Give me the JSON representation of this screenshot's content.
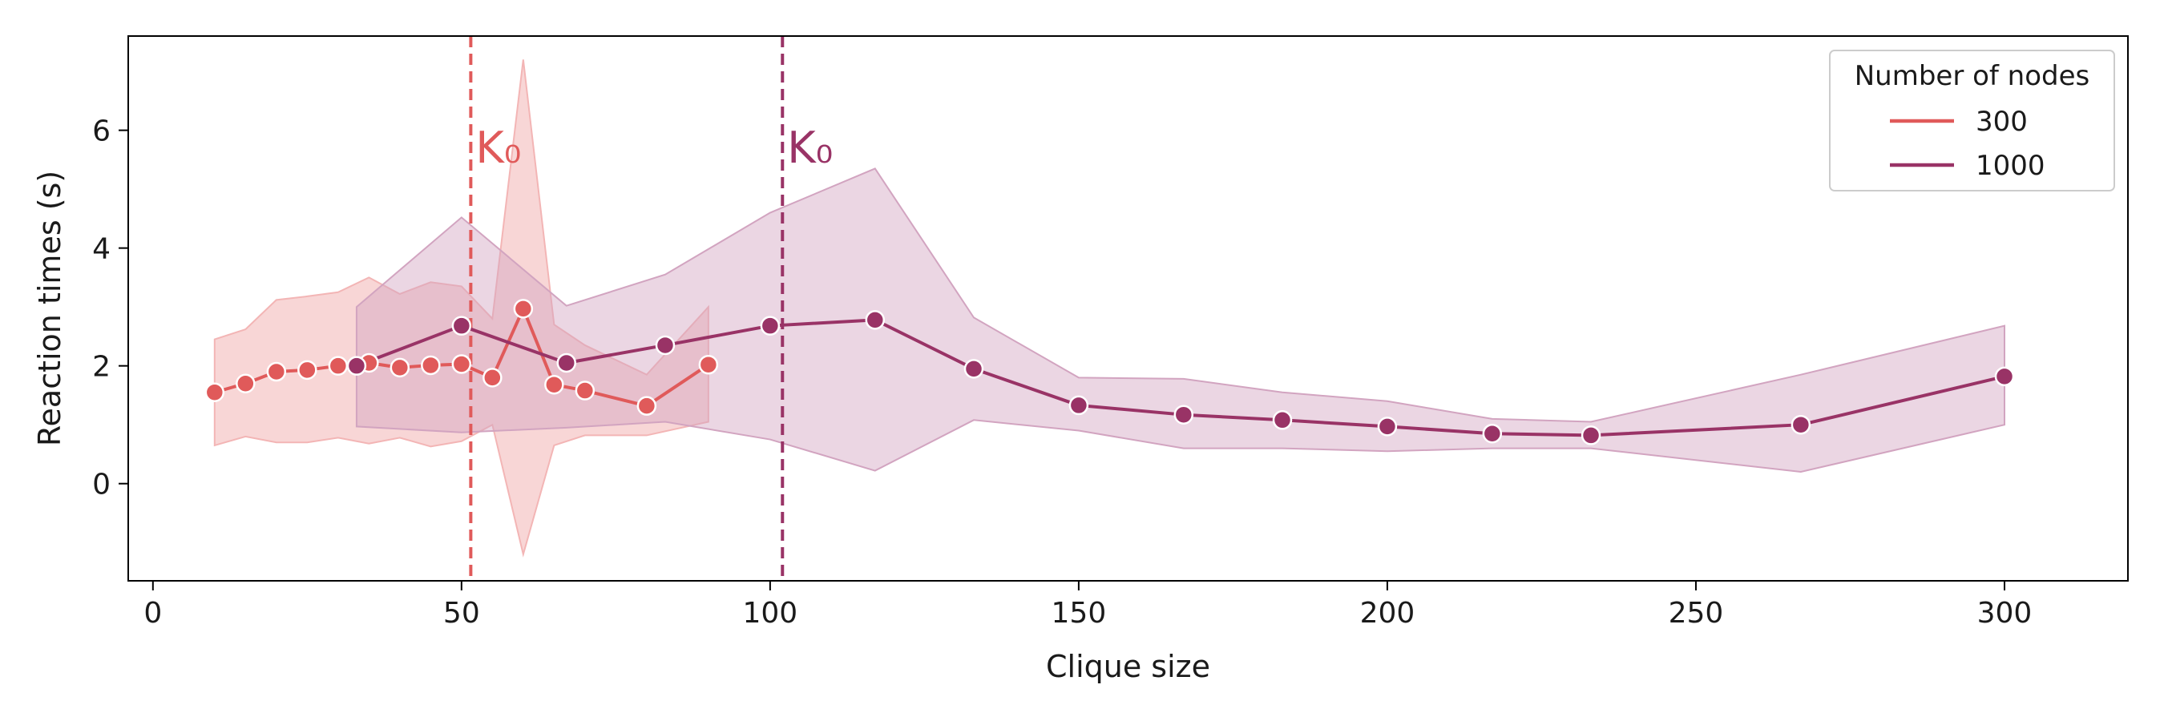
{
  "chart_data": {
    "type": "line",
    "xlabel": "Clique size",
    "ylabel": "Reaction times (s)",
    "xlim": [
      -4,
      320
    ],
    "ylim": [
      -1.65,
      7.6
    ],
    "xticks": [
      0,
      50,
      100,
      150,
      200,
      250,
      300
    ],
    "yticks": [
      0,
      2,
      4,
      6
    ],
    "legend": {
      "title": "Number of nodes",
      "position": "top-right"
    },
    "series": [
      {
        "name": "300",
        "color": "#e05a5a",
        "band_color": "#f3b5b5",
        "x": [
          10,
          15,
          20,
          25,
          30,
          35,
          40,
          45,
          50,
          55,
          60,
          65,
          70,
          80,
          90
        ],
        "y": [
          1.55,
          1.7,
          1.9,
          1.93,
          2.0,
          2.05,
          1.97,
          2.01,
          2.03,
          1.8,
          2.97,
          1.68,
          1.58,
          1.32,
          2.02
        ],
        "lower": [
          0.65,
          0.8,
          0.7,
          0.7,
          0.78,
          0.68,
          0.78,
          0.63,
          0.72,
          1.0,
          -1.2,
          0.65,
          0.82,
          0.82,
          1.05
        ],
        "upper": [
          2.45,
          2.62,
          3.12,
          3.18,
          3.25,
          3.5,
          3.22,
          3.42,
          3.35,
          2.8,
          7.2,
          2.7,
          2.35,
          1.85,
          3.0
        ]
      },
      {
        "name": "1000",
        "color": "#993366",
        "band_color": "#d2a4c0",
        "x": [
          33,
          50,
          67,
          83,
          100,
          117,
          133,
          150,
          167,
          183,
          200,
          217,
          233,
          267,
          300
        ],
        "y": [
          2.0,
          2.68,
          2.05,
          2.35,
          2.68,
          2.78,
          1.95,
          1.33,
          1.17,
          1.08,
          0.97,
          0.85,
          0.82,
          1.0,
          1.82
        ],
        "lower": [
          0.97,
          0.87,
          0.95,
          1.05,
          0.75,
          0.22,
          1.08,
          0.9,
          0.6,
          0.6,
          0.55,
          0.6,
          0.6,
          0.2,
          1.0
        ],
        "upper": [
          3.0,
          4.52,
          3.02,
          3.55,
          4.6,
          5.35,
          2.82,
          1.8,
          1.78,
          1.55,
          1.4,
          1.1,
          1.05,
          1.85,
          2.68
        ]
      }
    ],
    "annotations": [
      {
        "label": "K₀",
        "x": 51.5,
        "color": "#e05a5a"
      },
      {
        "label": "K₀",
        "x": 102,
        "color": "#993366"
      }
    ]
  }
}
